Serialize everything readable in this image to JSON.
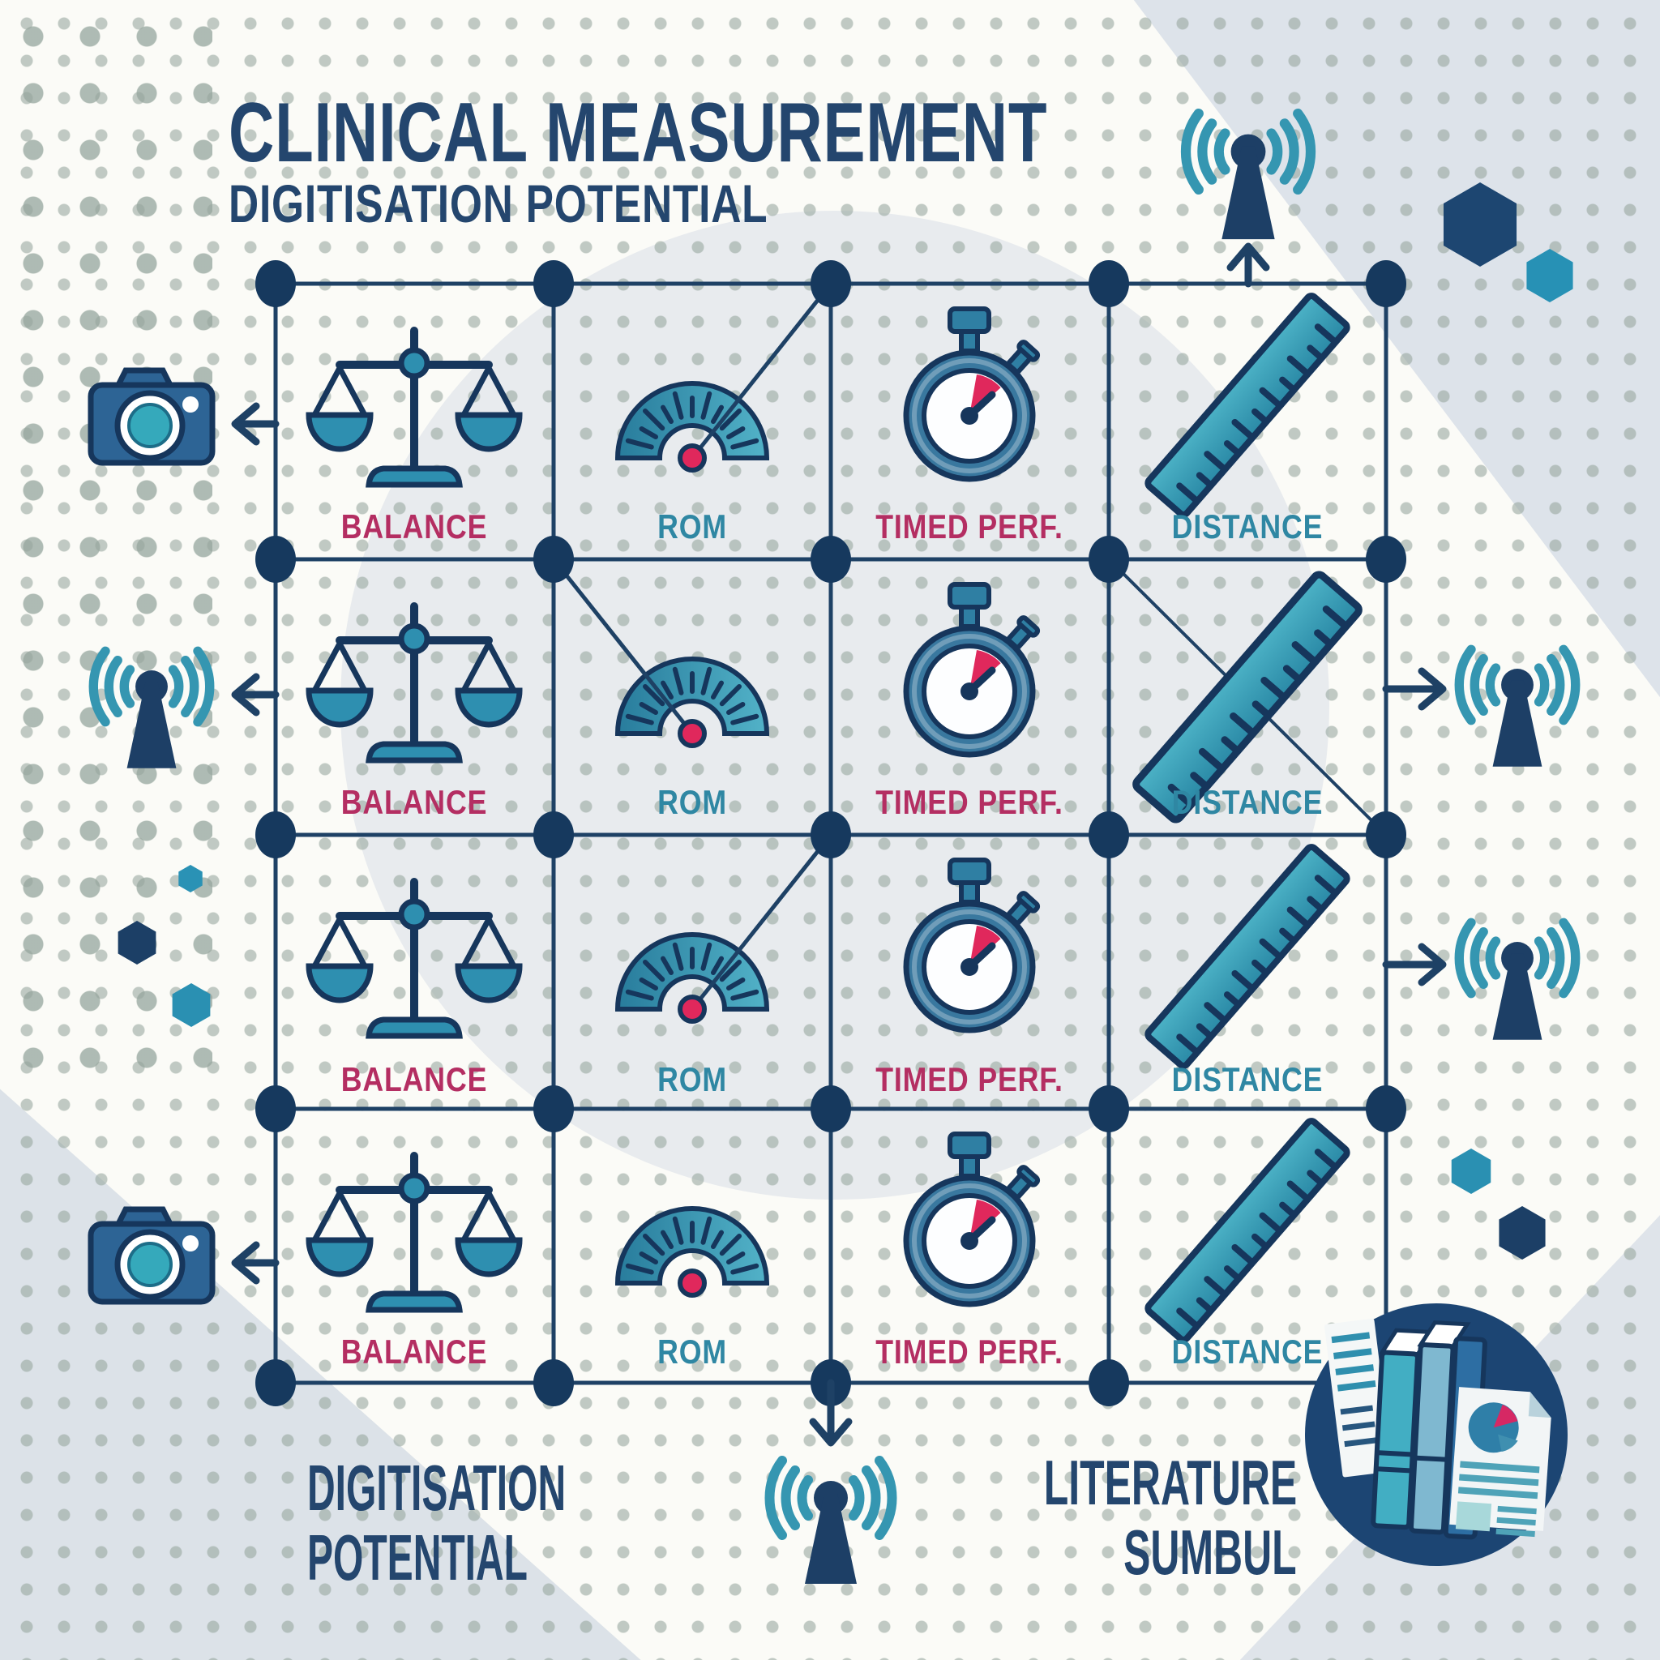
{
  "title": {
    "line1": "CLINICAL MEASUREMENT",
    "line2": "DIGITISATION POTENTIAL"
  },
  "grid": {
    "rows": 4,
    "column_labels": [
      "BALANCE",
      "ROM",
      "TIMED PERF.",
      "DISTANCE"
    ],
    "label_colors": [
      "#b42e62",
      "#2f87a3",
      "#b42e62",
      "#2f87a3"
    ]
  },
  "footer_left": {
    "line1": "DIGITISATION",
    "line2": "POTENTIAL"
  },
  "footer_right": {
    "line1": "LITERATURE",
    "line2": "SUMBUL"
  },
  "icons": {
    "balance": "balance-scale-icon",
    "rom": "rom-gauge-icon",
    "timed_perf": "stopwatch-icon",
    "distance": "ruler-icon",
    "camera": "camera-icon",
    "antenna": "radio-antenna-icon",
    "hexagon": "hexagon-icon",
    "literature": "literature-books-icon"
  },
  "colors": {
    "navy": "#1e4165",
    "node_navy": "#16395e",
    "steel_blue": "#2f6e9c",
    "teal": "#2e8fae",
    "teal_light": "#4ab0c6",
    "crimson": "#e0285c",
    "label_crimson": "#b42e62",
    "label_teal": "#2f87a3",
    "title_navy": "#24466e",
    "badge_navy": "#1c4573",
    "background": "#fbfbf7",
    "corner_tint": "#dde3ea",
    "dot_gray": "#96a59d"
  }
}
